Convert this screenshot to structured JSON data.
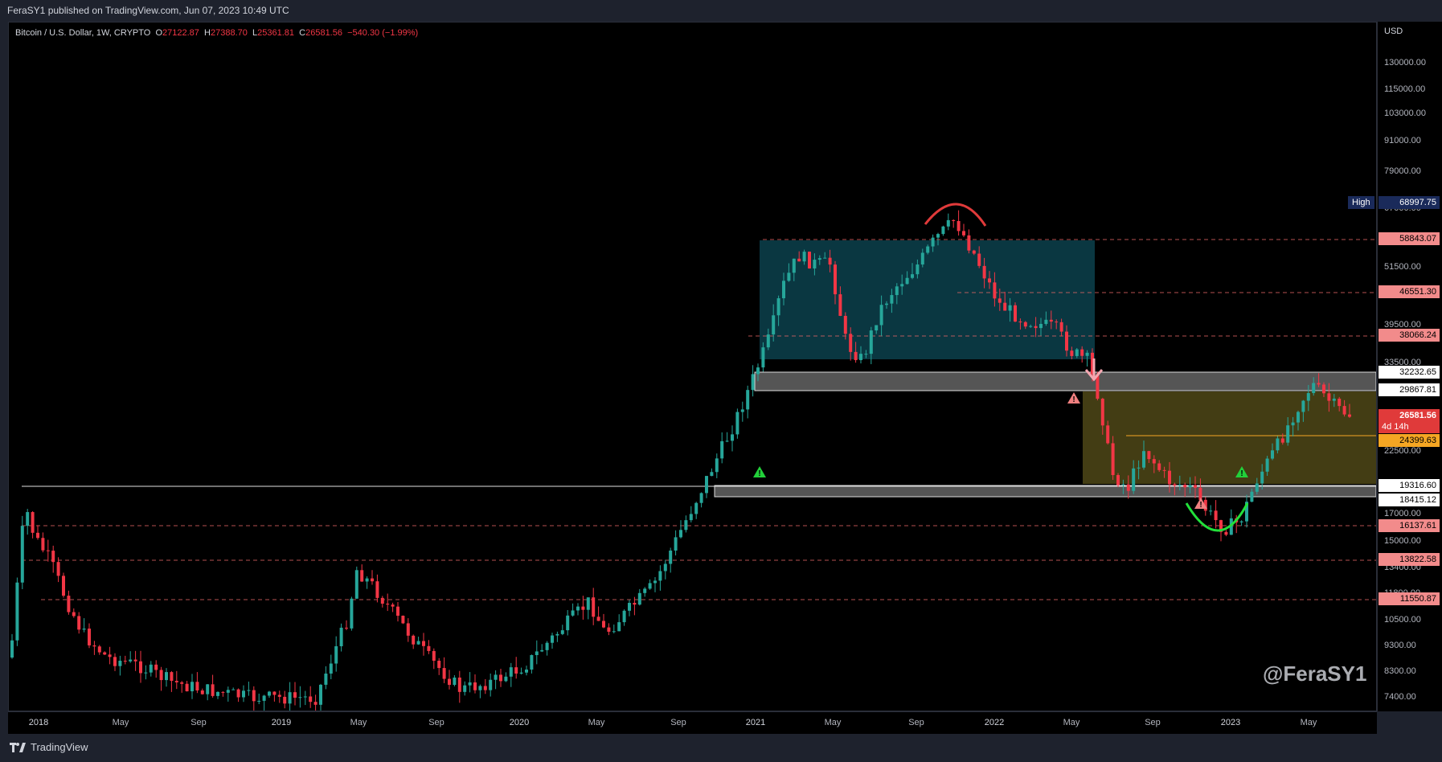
{
  "header": {
    "publish_text": "FeraSY1 published on TradingView.com, Jun 07, 2023 10:49 UTC"
  },
  "legend": {
    "symbol": "Bitcoin / U.S. Dollar, 1W, CRYPTO",
    "o_label": "O",
    "o_value": "27122.87",
    "h_label": "H",
    "h_value": "27388.70",
    "l_label": "L",
    "l_value": "25361.81",
    "c_label": "C",
    "c_value": "26581.56",
    "change": "−540.30 (−1.99%)"
  },
  "price_axis": {
    "currency": "USD",
    "ticks": [
      "130000.00",
      "115000.00",
      "103000.00",
      "91000.00",
      "79000.00",
      "67000.00",
      "51500.00",
      "39500.00",
      "33500.00",
      "22500.00",
      "17000.00",
      "15000.00",
      "13400.00",
      "11800.00",
      "10500.00",
      "9300.00",
      "8300.00",
      "7400.00"
    ]
  },
  "price_tags": {
    "high_label": "High",
    "high_value": "68997.75",
    "level_1": "58843.07",
    "level_2": "46551.30",
    "level_3": "38066.24",
    "level_4": "32232.65",
    "level_5": "29867.81",
    "current_price": "26581.56",
    "countdown": "4d 14h",
    "level_6": "24399.63",
    "level_7": "19316.60",
    "level_8": "18415.12",
    "level_9": "16137.61",
    "level_10": "13822.58",
    "level_11": "11550.87"
  },
  "time_axis": {
    "ticks": [
      "2018",
      "May",
      "Sep",
      "2019",
      "May",
      "Sep",
      "2020",
      "May",
      "Sep",
      "2021",
      "May",
      "Sep",
      "2022",
      "May",
      "Sep",
      "2023",
      "May"
    ]
  },
  "watermark": "@FeraSY1",
  "footer": {
    "brand": "TradingView"
  },
  "colors": {
    "up": "#26a69a",
    "down": "#f23645",
    "accent_teal": "#0b3a45",
    "accent_olive": "#4a4416"
  }
}
